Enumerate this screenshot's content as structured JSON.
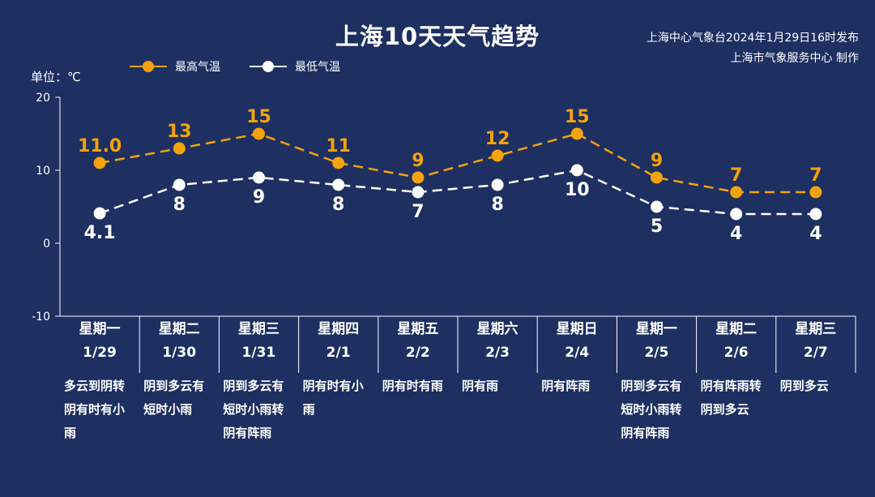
{
  "header": {
    "title": "上海10天天气趋势",
    "issuer_line1": "上海中心气象台2024年1月29日16时发布",
    "issuer_line2": "上海市气象服务中心 制作"
  },
  "unit_label": "单位：℃",
  "colors": {
    "background": "#1e2f61",
    "high": "#f5a30b",
    "low": "#ffffff",
    "axis": "#ffffff"
  },
  "chart_data": {
    "type": "line",
    "categories": [
      "1/29",
      "1/30",
      "1/31",
      "2/1",
      "2/2",
      "2/3",
      "2/4",
      "2/5",
      "2/6",
      "2/7"
    ],
    "weekdays": [
      "星期一",
      "星期二",
      "星期三",
      "星期四",
      "星期五",
      "星期六",
      "星期日",
      "星期一",
      "星期二",
      "星期三"
    ],
    "series": [
      {
        "name": "最高气温",
        "color": "#f5a30b",
        "values": [
          11.0,
          13,
          15,
          11,
          9,
          12,
          15,
          9,
          7,
          7
        ],
        "labels": [
          "11.0",
          "13",
          "15",
          "11",
          "9",
          "12",
          "15",
          "9",
          "7",
          "7"
        ]
      },
      {
        "name": "最低气温",
        "color": "#ffffff",
        "values": [
          4.1,
          8,
          9,
          8,
          7,
          8,
          10,
          5,
          4,
          4
        ],
        "labels": [
          "4.1",
          "8",
          "9",
          "8",
          "7",
          "8",
          "10",
          "5",
          "4",
          "4"
        ]
      }
    ],
    "ylim": [
      -10,
      20
    ],
    "yticks": [
      "20",
      "10",
      "0",
      "-10"
    ],
    "line_style": "dashed",
    "legend_position": "top-left",
    "grid": false
  },
  "weather": [
    "多云到阴转阴有时有小雨",
    "阴到多云有短时小雨",
    "阴到多云有短时小雨转阴有阵雨",
    "阴有时有小雨",
    "阴有时有雨",
    "阴有雨",
    "阴有阵雨",
    "阴到多云有短时小雨转阴有阵雨",
    "阴有阵雨转阴到多云",
    "阴到多云"
  ]
}
